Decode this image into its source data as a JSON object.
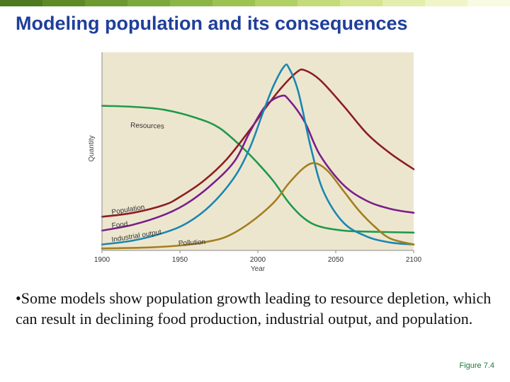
{
  "slide": {
    "title": "Modeling population and its consequences",
    "bullet": "•Some models show population growth leading to resource depletion, which can result in declining food production, industrial output, and population.",
    "figure_label": "Figure 7.4"
  },
  "theme": {
    "title_color": "#1f3f9a",
    "topbar_colors": [
      "#4d7a1f",
      "#5c8a26",
      "#6b9a30",
      "#7aa83a",
      "#8bb545",
      "#9cc252",
      "#b0cf64",
      "#c4db7a",
      "#d5e592",
      "#e4eeac",
      "#f0f5c8",
      "#f8fae2"
    ],
    "plot_background": "#ede6cf"
  },
  "chart_data": {
    "type": "line",
    "xlabel": "Year",
    "ylabel": "Quantity",
    "xlim": [
      1900,
      2100
    ],
    "ylim": [
      0,
      100
    ],
    "xticks": [
      1900,
      1950,
      2000,
      2050,
      2100
    ],
    "grid": false,
    "legend": "inline labels",
    "series": [
      {
        "name": "Resources",
        "color": "#1e9a4a",
        "points": [
          [
            1900,
            73
          ],
          [
            1920,
            72.5
          ],
          [
            1940,
            71
          ],
          [
            1960,
            67
          ],
          [
            1975,
            62
          ],
          [
            1990,
            52
          ],
          [
            2000,
            44
          ],
          [
            2010,
            35
          ],
          [
            2020,
            24
          ],
          [
            2030,
            16
          ],
          [
            2040,
            12
          ],
          [
            2055,
            10
          ],
          [
            2070,
            9.5
          ],
          [
            2100,
            9
          ]
        ]
      },
      {
        "name": "Population",
        "color": "#8b1e22",
        "points": [
          [
            1900,
            17
          ],
          [
            1920,
            19
          ],
          [
            1940,
            23
          ],
          [
            1950,
            27
          ],
          [
            1965,
            35
          ],
          [
            1980,
            46
          ],
          [
            1995,
            61
          ],
          [
            2005,
            72
          ],
          [
            2015,
            82
          ],
          [
            2025,
            90
          ],
          [
            2030,
            91
          ],
          [
            2040,
            86
          ],
          [
            2055,
            73
          ],
          [
            2070,
            59
          ],
          [
            2085,
            49
          ],
          [
            2100,
            41
          ]
        ]
      },
      {
        "name": "Food",
        "color": "#7a1e8a",
        "points": [
          [
            1900,
            10
          ],
          [
            1920,
            13
          ],
          [
            1940,
            18
          ],
          [
            1955,
            24
          ],
          [
            1970,
            33
          ],
          [
            1985,
            45
          ],
          [
            1995,
            60
          ],
          [
            2005,
            73
          ],
          [
            2015,
            78
          ],
          [
            2020,
            76
          ],
          [
            2030,
            65
          ],
          [
            2040,
            48
          ],
          [
            2055,
            33
          ],
          [
            2070,
            25
          ],
          [
            2085,
            21
          ],
          [
            2100,
            19
          ]
        ]
      },
      {
        "name": "Industrial output",
        "color": "#1a87b0",
        "points": [
          [
            1900,
            3
          ],
          [
            1920,
            5
          ],
          [
            1940,
            9
          ],
          [
            1955,
            14
          ],
          [
            1970,
            23
          ],
          [
            1985,
            37
          ],
          [
            1995,
            52
          ],
          [
            2003,
            69
          ],
          [
            2010,
            83
          ],
          [
            2017,
            93
          ],
          [
            2020,
            92
          ],
          [
            2026,
            80
          ],
          [
            2034,
            52
          ],
          [
            2042,
            30
          ],
          [
            2055,
            14
          ],
          [
            2070,
            7
          ],
          [
            2085,
            4
          ],
          [
            2100,
            3
          ]
        ]
      },
      {
        "name": "Pollution",
        "color": "#a37f1e",
        "points": [
          [
            1900,
            1
          ],
          [
            1930,
            1.5
          ],
          [
            1950,
            2.5
          ],
          [
            1965,
            4
          ],
          [
            1980,
            7
          ],
          [
            1995,
            14
          ],
          [
            2010,
            24
          ],
          [
            2020,
            34
          ],
          [
            2030,
            42
          ],
          [
            2037,
            44
          ],
          [
            2045,
            40
          ],
          [
            2055,
            30
          ],
          [
            2065,
            20
          ],
          [
            2075,
            12
          ],
          [
            2085,
            6
          ],
          [
            2100,
            3
          ]
        ]
      }
    ]
  }
}
